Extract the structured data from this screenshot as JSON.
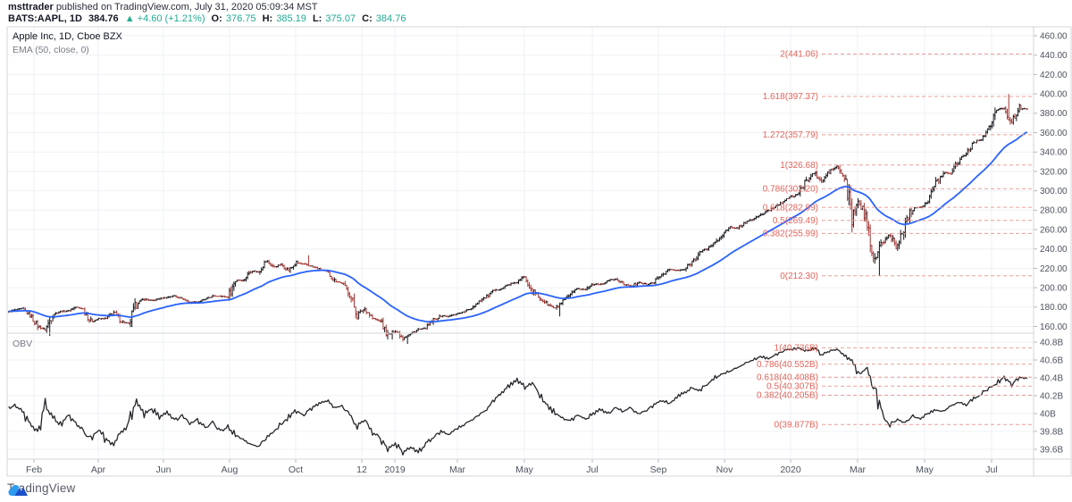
{
  "header": {
    "author": "msttrader",
    "published": "published on TradingView.com, July 31, 2020 05:09:34 MST",
    "symbol": "BATS:AAPL, 1D",
    "last": "384.76",
    "change": "▲ +4.60 (+1.21%)",
    "o_label": "O:",
    "o_val": "376.75",
    "h_label": "H:",
    "h_val": "385.19",
    "l_label": "L:",
    "l_val": "375.07",
    "c_label": "C:",
    "c_val": "384.76"
  },
  "legend": {
    "title": "Apple Inc, 1D, Cboe BZX",
    "indicator": "EMA (50, close, 0)"
  },
  "obv_title": "OBV",
  "brand": "TradingView",
  "colors": {
    "bar_up": "#16161a",
    "bar_down": "#a23632",
    "ema": "#2962ff",
    "obv": "#26262b",
    "fib_line": "#ec9d97",
    "fib_text": "#e4635a",
    "grid": "#eef0f4",
    "frame": "#d1d4da",
    "axis_text": "#4c525e",
    "tick": "#b2b5be",
    "teal": "#22ab94",
    "logo_light": "#2d9cf0",
    "logo_dark": "#1b50c8"
  },
  "chart_data": [
    {
      "panel": "price",
      "type": "ohlc-bars",
      "title": "Apple Inc, 1D, Cboe BZX",
      "overlay": "EMA (50, close, 0)",
      "ylim": [
        158,
        462
      ],
      "grid": true,
      "y_ticks": [
        "460.00",
        "440.00",
        "420.00",
        "400.00",
        "380.00",
        "360.00",
        "340.00",
        "320.00",
        "300.00",
        "280.00",
        "260.00",
        "240.00",
        "220.00",
        "200.00",
        "180.00",
        "160.00"
      ],
      "x_ticks": [
        {
          "label": "Feb",
          "x": 38
        },
        {
          "label": "Apr",
          "x": 110
        },
        {
          "label": "Jun",
          "x": 183
        },
        {
          "label": "Aug",
          "x": 257
        },
        {
          "label": "Oct",
          "x": 331
        },
        {
          "label": "12",
          "x": 405
        },
        {
          "label": "2019",
          "x": 442
        },
        {
          "label": "Mar",
          "x": 512
        },
        {
          "label": "May",
          "x": 587
        },
        {
          "label": "Jul",
          "x": 663
        },
        {
          "label": "Sep",
          "x": 737
        },
        {
          "label": "Nov",
          "x": 811
        },
        {
          "label": "2020",
          "x": 885
        },
        {
          "label": "Mar",
          "x": 960
        },
        {
          "label": "May",
          "x": 1035
        },
        {
          "label": "Jul",
          "x": 1110
        }
      ],
      "weekly_closes": [
        175,
        177,
        178.5,
        171.5,
        160.5,
        156.4,
        172.4,
        175.5,
        176.2,
        180,
        178,
        164.9,
        167.8,
        168.4,
        174.7,
        165.7,
        162.3,
        183.8,
        188.6,
        186.3,
        188.6,
        190.2,
        191.7,
        188.8,
        184.9,
        185.1,
        188,
        191.3,
        191.4,
        190.1,
        208,
        207.5,
        217.6,
        216.2,
        227.6,
        221.3,
        223.8,
        217.7,
        225.7,
        224.3,
        222.1,
        219.3,
        216.3,
        207.5,
        204.5,
        193.5,
        172.3,
        178.6,
        168.5,
        165.5,
        150.7,
        156.2,
        148.3,
        152.3,
        157,
        157.9,
        166.5,
        171,
        170.4,
        173,
        175,
        179,
        186.1,
        191,
        197,
        199.2,
        203.9,
        205.3,
        211.8,
        197.2,
        189,
        183,
        178.3,
        185.7,
        192.7,
        198.8,
        197.9,
        204.2,
        203.3,
        207.7,
        208.7,
        204,
        201,
        206.5,
        202.6,
        205.7,
        213.3,
        218.8,
        217.7,
        218.8,
        227,
        236.2,
        240.5,
        246.6,
        255.3,
        261.8,
        261.7,
        267.3,
        270.7,
        275.2,
        279.4,
        284.3,
        289.8,
        293.6,
        297.4,
        310.3,
        318.3,
        309,
        320,
        325,
        313,
        273.4,
        289,
        266.2,
        229.2,
        246.7,
        254.3,
        240.9,
        268,
        282.8,
        283.2,
        289.1,
        307.7,
        318.9,
        317.9,
        331.5,
        338.8,
        349.7,
        353.6,
        364.1,
        383.7,
        385.3,
        370.5,
        384.8
      ],
      "spike_lows": {
        "5": 150.2,
        "50": 146.6,
        "52": 142.0,
        "72": 170.3,
        "114": 212.3
      },
      "spike_highs": {
        "39": 233.5,
        "131": 399.8
      },
      "fib_levels": [
        {
          "text": "2(441.06)",
          "value": 441.06
        },
        {
          "text": "1.618(397.37)",
          "value": 397.37
        },
        {
          "text": "1.272(357.79)",
          "value": 357.79
        },
        {
          "text": "1(326.68)",
          "value": 326.68
        },
        {
          "text": "0.786(302.20)",
          "value": 302.2
        },
        {
          "text": "0.618(282.99)",
          "value": 282.99
        },
        {
          "text": "0.5(269.49)",
          "value": 269.49
        },
        {
          "text": "0.382(255.99)",
          "value": 255.99
        },
        {
          "text": "0(212.30)",
          "value": 212.3
        }
      ]
    },
    {
      "panel": "obv",
      "type": "line",
      "title": "OBV",
      "y_ticks": [
        "40.8B",
        "40.6B",
        "40.4B",
        "40.2B",
        "40B",
        "39.8B",
        "39.6B"
      ],
      "weekly_values": [
        40.05,
        40.1,
        40.04,
        39.86,
        39.8,
        40.08,
        39.97,
        39.88,
        39.98,
        39.9,
        39.8,
        39.72,
        39.82,
        39.7,
        39.65,
        39.78,
        39.92,
        40.12,
        40.0,
        40.06,
        39.96,
        40.02,
        39.92,
        39.98,
        39.88,
        39.94,
        39.84,
        39.9,
        39.8,
        39.86,
        39.76,
        39.7,
        39.66,
        39.64,
        39.72,
        39.8,
        39.88,
        39.96,
        40.03,
        39.98,
        40.06,
        40.11,
        40.14,
        40.06,
        40.09,
        39.99,
        39.86,
        39.92,
        39.8,
        39.72,
        39.6,
        39.66,
        39.56,
        39.62,
        39.57,
        39.65,
        39.74,
        39.8,
        39.76,
        39.83,
        39.88,
        39.93,
        39.98,
        40.04,
        40.15,
        40.24,
        40.32,
        40.38,
        40.3,
        40.34,
        40.22,
        40.1,
        40.0,
        39.95,
        39.92,
        39.98,
        39.94,
        40.0,
        40.05,
        40.0,
        40.06,
        40.02,
        40.07,
        39.98,
        40.04,
        40.1,
        40.15,
        40.12,
        40.18,
        40.24,
        40.29,
        40.26,
        40.33,
        40.4,
        40.44,
        40.48,
        40.52,
        40.56,
        40.6,
        40.64,
        40.61,
        40.66,
        40.7,
        40.72,
        40.736,
        40.7,
        40.73,
        40.66,
        40.7,
        40.72,
        40.65,
        40.58,
        40.44,
        40.52,
        40.26,
        39.96,
        39.88,
        39.93,
        39.9,
        39.97,
        39.94,
        40.0,
        40.05,
        40.02,
        40.08,
        40.13,
        40.1,
        40.17,
        40.22,
        40.28,
        40.34,
        40.42,
        40.33,
        40.4
      ],
      "fib_levels": [
        {
          "text": "1(40.736B)",
          "value": 40.736
        },
        {
          "text": "0.786(40.552B)",
          "value": 40.552
        },
        {
          "text": "0.618(40.408B)",
          "value": 40.408
        },
        {
          "text": "0.5(40.307B)",
          "value": 40.307
        },
        {
          "text": "0.382(40.205B)",
          "value": 40.205
        },
        {
          "text": "0(39.877B)",
          "value": 39.877
        }
      ]
    }
  ]
}
